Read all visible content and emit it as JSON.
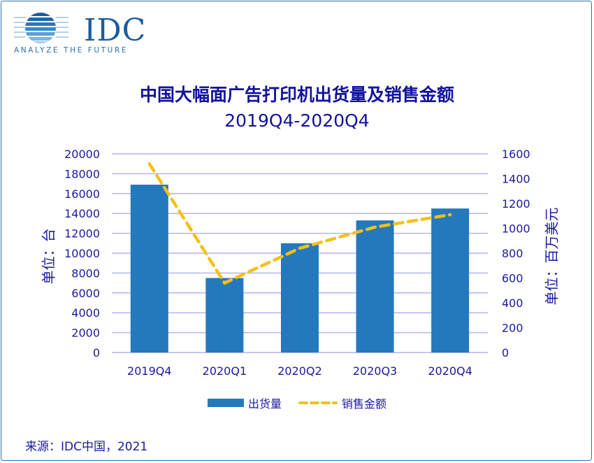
{
  "logo": {
    "name": "IDC",
    "tagline": "ANALYZE THE FUTURE"
  },
  "chart_data": {
    "type": "bar+line",
    "title": "中国大幅面广告打印机出货量及销售金额",
    "subtitle": "2019Q4-2020Q4",
    "categories": [
      "2019Q4",
      "2020Q1",
      "2020Q2",
      "2020Q3",
      "2020Q4"
    ],
    "series": [
      {
        "name": "出货量",
        "type": "bar",
        "axis": "left",
        "color": "#2479bc",
        "values": [
          16900,
          7500,
          11000,
          13300,
          14500
        ]
      },
      {
        "name": "销售金额",
        "type": "line",
        "style": "dashed",
        "axis": "right",
        "color": "#f5c018",
        "values": [
          1520,
          560,
          840,
          1010,
          1110
        ]
      }
    ],
    "ylabel_left": "单位：台",
    "ylabel_right": "单位：百万美元",
    "ylim_left": [
      0,
      20000
    ],
    "yticks_left": [
      "0",
      "2000",
      "4000",
      "6000",
      "8000",
      "10000",
      "12000",
      "14000",
      "16000",
      "18000",
      "20000"
    ],
    "ylim_right": [
      0,
      1600
    ],
    "yticks_right": [
      "0",
      "200",
      "400",
      "600",
      "800",
      "1000",
      "1200",
      "1400",
      "1600"
    ],
    "grid": true,
    "grid_color": "#b4b4f0",
    "text_color": "#1a1aa0",
    "legend_position": "bottom"
  },
  "source": "来源：IDC中国，2021"
}
